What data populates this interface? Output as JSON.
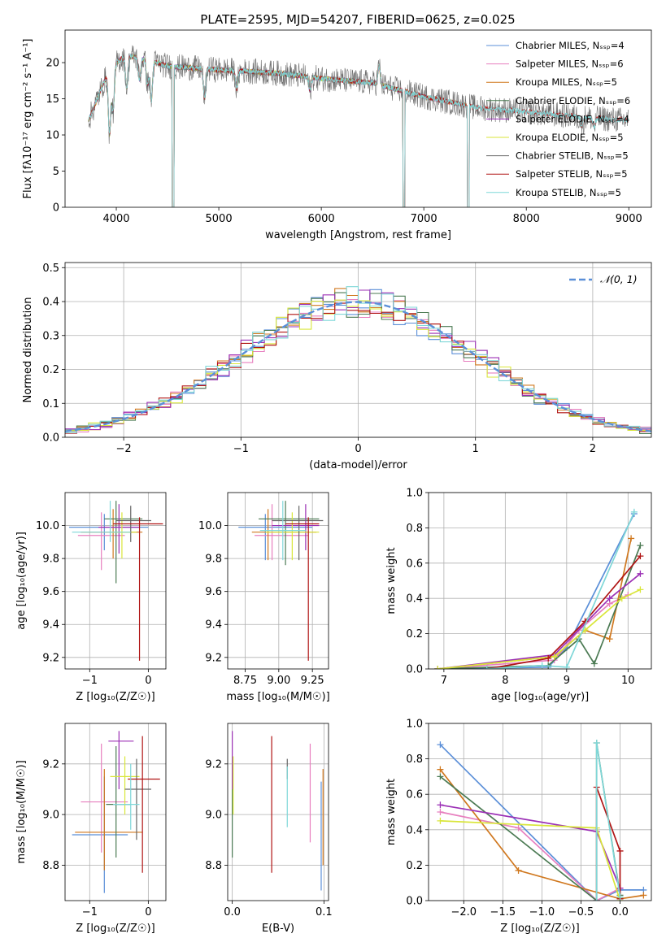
{
  "figure": {
    "title": "PLATE=2595, MJD=54207, FIBERID=0625, z=0.025"
  },
  "colors": {
    "ChabMILES": "#5b8fd8",
    "SalpMILES": "#e77fbf",
    "KrouMILES": "#d0781f",
    "ChabELODIE": "#4b7a53",
    "SalpELODIE": "#9b2fb5",
    "KrouELODIE": "#d9e63a",
    "ChabSTELIB": "#666666",
    "SalpSTELIB": "#b01414",
    "KrouSTELIB": "#7fd7d8"
  },
  "chart_data": [
    {
      "id": "spectrum",
      "type": "line",
      "xlabel": "wavelength [Angstrom, rest frame]",
      "ylabel": "Flux [fλ10⁻¹⁷ erg cm⁻² s⁻¹ A⁻¹]",
      "xlim": [
        3500,
        9220
      ],
      "ylim": [
        0,
        24.5
      ],
      "xticks": [
        4000,
        5000,
        6000,
        7000,
        8000,
        9000
      ],
      "yticks": [
        0,
        5,
        10,
        15,
        20
      ],
      "legend": "top-right",
      "data_range": [
        3730,
        9000
      ],
      "continuum": {
        "x": [
          3730,
          3800,
          3900,
          4000,
          4100,
          4300,
          4500,
          4700,
          5000,
          5300,
          5600,
          6000,
          6500,
          7000,
          7500,
          8000,
          8500,
          9000
        ],
        "y": [
          12.0,
          14.5,
          18.0,
          20.0,
          21.0,
          20.5,
          19.5,
          19.3,
          19.0,
          18.8,
          18.5,
          17.8,
          17.2,
          15.3,
          13.8,
          13.2,
          12.5,
          12.0
        ]
      },
      "features": [
        [
          3934,
          8.5
        ],
        [
          3969,
          6.0
        ],
        [
          4102,
          4.5
        ],
        [
          4227,
          3.0
        ],
        [
          4304,
          3.5
        ],
        [
          4341,
          5.5
        ],
        [
          4861,
          4.0
        ],
        [
          5175,
          2.5
        ],
        [
          5890,
          1.8
        ],
        [
          6563,
          -2.5
        ],
        [
          8542,
          1.2
        ],
        [
          8662,
          1.2
        ]
      ],
      "gaps": [
        [
          4545,
          4565
        ],
        [
          6795,
          6815
        ],
        [
          7425,
          7445
        ]
      ],
      "series": [
        {
          "name": "Chabrier MILES, N_SSP=4",
          "color_key": "ChabMILES",
          "max_x": 7440
        },
        {
          "name": "Salpeter MILES, N_SSP=6",
          "color_key": "SalpMILES",
          "max_x": 7440
        },
        {
          "name": "Kroupa MILES, N_SSP=5",
          "color_key": "KrouMILES",
          "max_x": 7440
        },
        {
          "name": "Chabrier ELODIE, N_SSP=6",
          "color_key": "ChabELODIE",
          "max_x": 6800
        },
        {
          "name": "Salpeter ELODIE, N_SSP=4",
          "color_key": "SalpELODIE",
          "max_x": 6800
        },
        {
          "name": "Kroupa ELODIE, N_SSP=5",
          "color_key": "KrouELODIE",
          "max_x": 6800
        },
        {
          "name": "Chabrier STELIB, N_SSP=5",
          "color_key": "ChabSTELIB",
          "max_x": 9000
        },
        {
          "name": "Salpeter STELIB, N_SSP=5",
          "color_key": "SalpSTELIB",
          "max_x": 9000
        },
        {
          "name": "Kroupa STELIB, N_SSP=5",
          "color_key": "KrouSTELIB",
          "max_x": 9000
        }
      ]
    },
    {
      "id": "residuals",
      "type": "histogram",
      "xlabel": "(data-model)/error",
      "ylabel": "Normed distribution",
      "xlim": [
        -2.5,
        2.5
      ],
      "ylim": [
        0,
        0.515
      ],
      "xticks": [
        -2,
        -1,
        0,
        1,
        2
      ],
      "yticks": [
        0.0,
        0.1,
        0.2,
        0.3,
        0.4,
        0.5
      ],
      "bin_width": 0.1,
      "legend": "top-right",
      "gaussian_label": "𝒩(0, 1)",
      "gaussian_color": "#5b8fd8",
      "series_keys": [
        "ChabMILES",
        "SalpMILES",
        "KrouMILES",
        "ChabELODIE",
        "SalpELODIE",
        "KrouELODIE",
        "SalpSTELIB",
        "KrouSTELIB"
      ]
    },
    {
      "id": "age_vs_Z",
      "type": "errorbar",
      "xlabel": "Z [log₁₀(Z/Z☉)]",
      "ylabel": "age  [log₁₀(age/yr)]",
      "xlim": [
        -1.42,
        0.3
      ],
      "ylim": [
        9.13,
        10.2
      ],
      "xticks": [
        -1,
        0
      ],
      "yticks": [
        9.2,
        9.4,
        9.6,
        9.8,
        10.0
      ],
      "points": [
        {
          "k": "ChabMILES",
          "x": -0.75,
          "xe": [
            -1.35,
            0.0
          ],
          "y": 9.99,
          "ye": [
            9.85,
            10.07
          ]
        },
        {
          "k": "SalpMILES",
          "x": -0.8,
          "xe": [
            -1.2,
            -0.4
          ],
          "y": 9.94,
          "ye": [
            9.73,
            10.08
          ]
        },
        {
          "k": "KrouMILES",
          "x": -0.6,
          "xe": [
            -1.15,
            -0.1
          ],
          "y": 9.96,
          "ye": [
            9.8,
            10.1
          ]
        },
        {
          "k": "ChabELODIE",
          "x": -0.55,
          "xe": [
            -0.75,
            -0.1
          ],
          "y": 10.04,
          "ye": [
            9.65,
            10.15
          ]
        },
        {
          "k": "SalpELODIE",
          "x": -0.5,
          "xe": [
            -0.85,
            -0.15
          ],
          "y": 9.99,
          "ye": [
            9.83,
            10.13
          ]
        },
        {
          "k": "KrouELODIE",
          "x": -0.45,
          "xe": [
            -0.65,
            -0.2
          ],
          "y": 9.96,
          "ye": [
            9.8,
            10.08
          ]
        },
        {
          "k": "ChabSTELIB",
          "x": -0.3,
          "xe": [
            -0.55,
            0.05
          ],
          "y": 10.03,
          "ye": [
            9.9,
            10.12
          ]
        },
        {
          "k": "SalpSTELIB",
          "x": -0.15,
          "xe": [
            -0.6,
            0.25
          ],
          "y": 10.01,
          "ye": [
            9.18,
            10.05
          ]
        },
        {
          "k": "KrouSTELIB",
          "x": -0.65,
          "xe": [
            -1.3,
            -0.3
          ],
          "y": 9.96,
          "ye": [
            9.9,
            10.15
          ]
        }
      ]
    },
    {
      "id": "age_vs_mass",
      "type": "errorbar",
      "xlabel": "mass [log₁₀(M/M☉)]",
      "ylabel": "",
      "xlim": [
        8.62,
        9.37
      ],
      "ylim": [
        9.13,
        10.2
      ],
      "xticks": [
        8.75,
        9.0,
        9.25
      ],
      "yticks": [
        9.2,
        9.4,
        9.6,
        9.8,
        10.0
      ],
      "points": [
        {
          "k": "ChabMILES",
          "x": 8.9,
          "xe": [
            8.7,
            9.25
          ],
          "y": 9.99,
          "ye": [
            9.79,
            10.07
          ]
        },
        {
          "k": "SalpMILES",
          "x": 8.95,
          "xe": [
            8.82,
            9.22
          ],
          "y": 9.94,
          "ye": [
            9.79,
            10.13
          ]
        },
        {
          "k": "KrouMILES",
          "x": 8.92,
          "xe": [
            8.8,
            9.28
          ],
          "y": 9.96,
          "ye": [
            9.79,
            10.1
          ]
        },
        {
          "k": "ChabELODIE",
          "x": 9.05,
          "xe": [
            8.85,
            9.3
          ],
          "y": 10.04,
          "ye": [
            9.76,
            10.15
          ]
        },
        {
          "k": "SalpELODIE",
          "x": 9.2,
          "xe": [
            8.95,
            9.3
          ],
          "y": 10.0,
          "ye": [
            9.85,
            10.13
          ]
        },
        {
          "k": "KrouELODIE",
          "x": 9.1,
          "xe": [
            8.9,
            9.3
          ],
          "y": 9.96,
          "ye": [
            9.79,
            10.08
          ]
        },
        {
          "k": "ChabSTELIB",
          "x": 9.15,
          "xe": [
            8.95,
            9.33
          ],
          "y": 10.03,
          "ye": [
            9.79,
            10.12
          ]
        },
        {
          "k": "SalpSTELIB",
          "x": 9.22,
          "xe": [
            9.05,
            9.3
          ],
          "y": 10.01,
          "ye": [
            9.18,
            10.05
          ]
        },
        {
          "k": "KrouSTELIB",
          "x": 9.03,
          "xe": [
            8.86,
            9.2
          ],
          "y": 9.97,
          "ye": [
            9.79,
            10.15
          ]
        }
      ]
    },
    {
      "id": "weight_vs_age",
      "type": "line",
      "xlabel": "age  [log₁₀(age/yr)]",
      "ylabel": "mass weight",
      "xlim": [
        6.75,
        10.38
      ],
      "ylim": [
        0,
        1.0
      ],
      "xticks": [
        7,
        8,
        9,
        10
      ],
      "yticks": [
        0.0,
        0.2,
        0.4,
        0.6,
        0.8,
        1.0
      ],
      "series": [
        {
          "k": "ChabMILES",
          "x": [
            6.9,
            8.7,
            9.0,
            10.1
          ],
          "y": [
            0.0,
            0.01,
            0.12,
            0.88
          ]
        },
        {
          "k": "SalpMILES",
          "x": [
            6.9,
            8.8,
            9.2,
            9.7,
            10.0
          ],
          "y": [
            0.0,
            0.05,
            0.22,
            0.37,
            0.42
          ]
        },
        {
          "k": "KrouMILES",
          "x": [
            6.9,
            8.8,
            9.3,
            9.7,
            10.05
          ],
          "y": [
            0.0,
            0.07,
            0.22,
            0.17,
            0.74
          ]
        },
        {
          "k": "ChabELODIE",
          "x": [
            6.9,
            8.7,
            9.2,
            9.45,
            10.2
          ],
          "y": [
            0.0,
            0.02,
            0.17,
            0.03,
            0.7
          ]
        },
        {
          "k": "SalpELODIE",
          "x": [
            6.9,
            8.8,
            9.7,
            10.2
          ],
          "y": [
            0.0,
            0.08,
            0.4,
            0.54
          ]
        },
        {
          "k": "KrouELODIE",
          "x": [
            6.9,
            8.8,
            9.3,
            9.9,
            10.2
          ],
          "y": [
            0.0,
            0.07,
            0.22,
            0.4,
            0.45
          ]
        },
        {
          "k": "SalpSTELIB",
          "x": [
            7.7,
            8.7,
            9.3,
            10.2
          ],
          "y": [
            0.0,
            0.06,
            0.27,
            0.64
          ]
        },
        {
          "k": "KrouSTELIB",
          "x": [
            7.7,
            8.6,
            9.0,
            10.1
          ],
          "y": [
            0.0,
            0.02,
            0.01,
            0.89
          ]
        }
      ]
    },
    {
      "id": "mass_vs_Z",
      "type": "errorbar",
      "xlabel": "Z [log₁₀(Z/Z☉)]",
      "ylabel": "mass [log₁₀(M/M☉)]",
      "xlim": [
        -1.42,
        0.3
      ],
      "ylim": [
        8.66,
        9.36
      ],
      "xticks": [
        -1,
        0
      ],
      "yticks": [
        8.8,
        9.0,
        9.2
      ],
      "points": [
        {
          "k": "ChabMILES",
          "x": -0.75,
          "xe": [
            -1.3,
            -0.35
          ],
          "y": 8.92,
          "ye": [
            8.69,
            9.15
          ]
        },
        {
          "k": "SalpMILES",
          "x": -0.8,
          "xe": [
            -1.15,
            -0.35
          ],
          "y": 9.05,
          "ye": [
            8.85,
            9.28
          ]
        },
        {
          "k": "KrouMILES",
          "x": -0.75,
          "xe": [
            -1.25,
            -0.1
          ],
          "y": 8.93,
          "ye": [
            8.78,
            9.18
          ]
        },
        {
          "k": "ChabELODIE",
          "x": -0.55,
          "xe": [
            -0.72,
            -0.3
          ],
          "y": 9.04,
          "ye": [
            8.83,
            9.27
          ]
        },
        {
          "k": "SalpELODIE",
          "x": -0.5,
          "xe": [
            -0.68,
            -0.25
          ],
          "y": 9.29,
          "ye": [
            9.1,
            9.33
          ]
        },
        {
          "k": "KrouELODIE",
          "x": -0.4,
          "xe": [
            -0.65,
            -0.15
          ],
          "y": 9.15,
          "ye": [
            9.0,
            9.23
          ]
        },
        {
          "k": "ChabSTELIB",
          "x": -0.2,
          "xe": [
            -0.4,
            0.05
          ],
          "y": 9.1,
          "ye": [
            8.9,
            9.22
          ]
        },
        {
          "k": "SalpSTELIB",
          "x": -0.1,
          "xe": [
            -0.35,
            0.2
          ],
          "y": 9.14,
          "ye": [
            8.77,
            9.31
          ]
        },
        {
          "k": "KrouSTELIB",
          "x": -0.3,
          "xe": [
            -0.6,
            -0.15
          ],
          "y": 9.04,
          "ye": [
            8.94,
            9.2
          ]
        }
      ]
    },
    {
      "id": "mass_vs_EBV",
      "type": "errorbar",
      "xlabel": "E(B-V)",
      "ylabel": "",
      "xlim": [
        -0.005,
        0.105
      ],
      "ylim": [
        8.66,
        9.36
      ],
      "xticks": [
        0.0,
        0.1
      ],
      "yticks": [
        8.8,
        9.0,
        9.2
      ],
      "points": [
        {
          "k": "ChabMILES",
          "x": 0.097,
          "ye": [
            8.7,
            9.13
          ]
        },
        {
          "k": "SalpMILES",
          "x": 0.085,
          "ye": [
            8.89,
            9.28
          ]
        },
        {
          "k": "KrouMILES",
          "x": 0.099,
          "ye": [
            8.8,
            9.18
          ]
        },
        {
          "k": "ChabELODIE",
          "x": 0.0,
          "ye": [
            8.83,
            9.23
          ]
        },
        {
          "k": "SalpELODIE",
          "x": 0.0,
          "ye": [
            9.1,
            9.33
          ]
        },
        {
          "k": "KrouELODIE",
          "x": 0.001,
          "ye": [
            9.0,
            9.23
          ]
        },
        {
          "k": "ChabSTELIB",
          "x": 0.06,
          "ye": [
            9.14,
            9.22
          ]
        },
        {
          "k": "SalpSTELIB",
          "x": 0.043,
          "ye": [
            8.77,
            9.31
          ]
        },
        {
          "k": "KrouSTELIB",
          "x": 0.06,
          "ye": [
            8.95,
            9.19
          ]
        }
      ]
    },
    {
      "id": "weight_vs_Z",
      "type": "line",
      "xlabel": "Z [log₁₀(Z/Z☉)]",
      "ylabel": "mass weight",
      "xlim": [
        -2.45,
        0.4
      ],
      "ylim": [
        0,
        1.0
      ],
      "xticks": [
        -2.0,
        -1.5,
        -1.0,
        -0.5,
        0.0
      ],
      "yticks": [
        0.0,
        0.2,
        0.4,
        0.6,
        0.8,
        1.0
      ],
      "series": [
        {
          "k": "ChabMILES",
          "x": [
            -2.3,
            -0.3,
            0.0,
            0.3
          ],
          "y": [
            0.88,
            0.0,
            0.06,
            0.06
          ]
        },
        {
          "k": "SalpMILES",
          "x": [
            -2.3,
            -1.3,
            -0.3,
            0.0
          ],
          "y": [
            0.5,
            0.41,
            0.0,
            0.07
          ]
        },
        {
          "k": "KrouMILES",
          "x": [
            -2.3,
            -1.3,
            0.0,
            0.3
          ],
          "y": [
            0.74,
            0.17,
            0.01,
            0.03
          ]
        },
        {
          "k": "ChabELODIE",
          "x": [
            -2.3,
            -0.3,
            -0.3,
            0.0
          ],
          "y": [
            0.7,
            0.0,
            0.89,
            0.03
          ]
        },
        {
          "k": "SalpELODIE",
          "x": [
            -2.3,
            -0.3,
            0.0
          ],
          "y": [
            0.54,
            0.39,
            0.07
          ]
        },
        {
          "k": "KrouELODIE",
          "x": [
            -2.3,
            -0.3,
            0.0
          ],
          "y": [
            0.45,
            0.41,
            0.0
          ]
        },
        {
          "k": "SalpSTELIB",
          "x": [
            -0.3,
            -0.3,
            0.0,
            0.0
          ],
          "y": [
            0.0,
            0.64,
            0.28,
            0.01
          ]
        },
        {
          "k": "KrouSTELIB",
          "x": [
            -0.3,
            -0.3,
            0.0
          ],
          "y": [
            0.0,
            0.89,
            0.02
          ]
        }
      ]
    }
  ]
}
